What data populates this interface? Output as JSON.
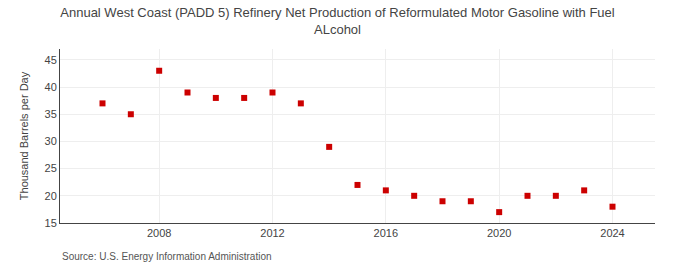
{
  "chart_data": {
    "type": "scatter",
    "title": "Annual West Coast (PADD 5) Refinery Net Production of Reformulated Motor Gasoline with Fuel\nALcohol",
    "y_label": "Thousand Barrels per Day",
    "annotations": [
      "Source: U.S. Energy Information Administration"
    ],
    "x": [
      2006,
      2007,
      2008,
      2009,
      2010,
      2011,
      2012,
      2013,
      2014,
      2015,
      2016,
      2017,
      2018,
      2019,
      2020,
      2021,
      2022,
      2023,
      2024
    ],
    "values": [
      37.0,
      35.0,
      43.0,
      39.0,
      38.0,
      38.0,
      39.0,
      37.0,
      29.0,
      22.0,
      21.0,
      20.0,
      19.0,
      19.0,
      17.0,
      20.0,
      20.0,
      21.0,
      18.0
    ],
    "color": "#cc0000",
    "marker": "square",
    "xlim": [
      2004.5,
      2025.5
    ],
    "xticks": [
      2008,
      2012,
      2016,
      2020,
      2024
    ],
    "ylim": [
      15,
      47
    ],
    "yticks": [
      15,
      20,
      25,
      30,
      35,
      40,
      45
    ],
    "grid": true
  }
}
